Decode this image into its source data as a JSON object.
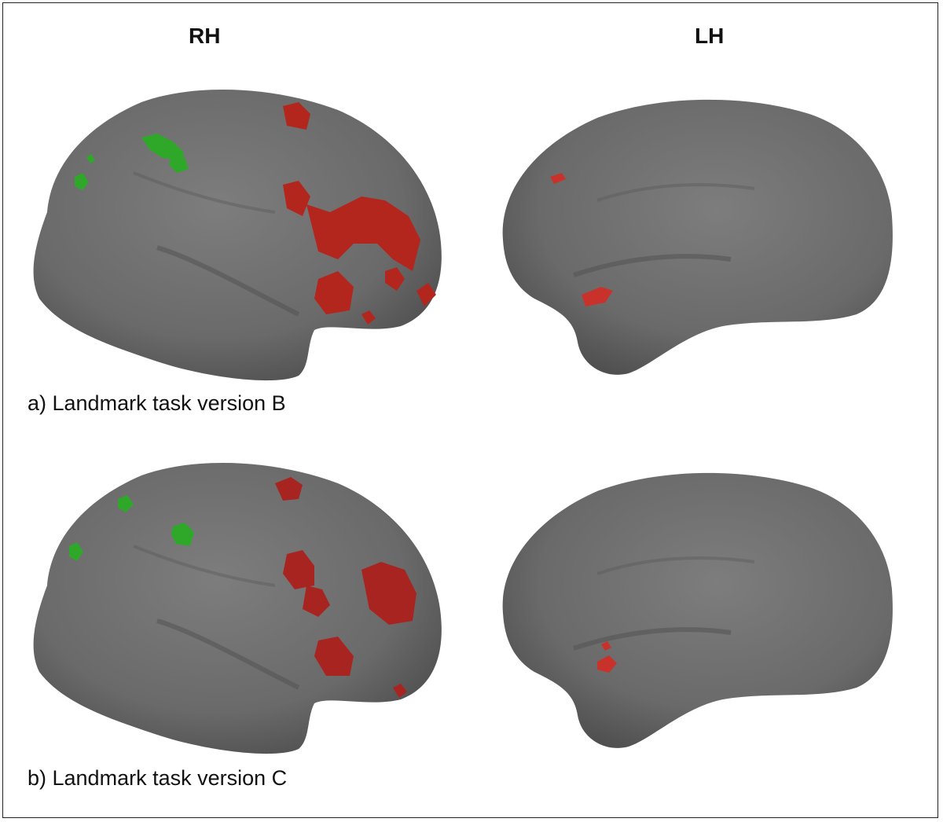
{
  "figure": {
    "columns": [
      {
        "id": "rh",
        "label": "RH"
      },
      {
        "id": "lh",
        "label": "LH"
      }
    ],
    "rows": [
      {
        "id": "a",
        "caption": "a) Landmark task version B"
      },
      {
        "id": "b",
        "caption": "b) Landmark task version C"
      }
    ],
    "colors": {
      "cortex": "#6b6b6b",
      "cortex_shadow": "#4e4e4e",
      "activation_red": "#b3261e",
      "activation_green": "#2fa82a"
    }
  }
}
